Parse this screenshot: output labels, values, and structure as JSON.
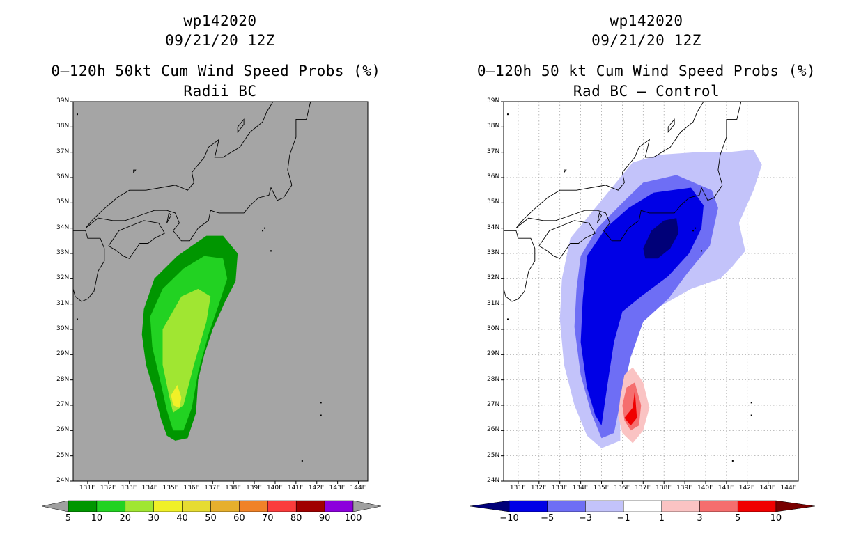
{
  "panels": [
    {
      "storm_id": "wp142020",
      "datetime": "09/21/20 12Z",
      "product": "0–120h 50kt Cum Wind Speed Probs (%)",
      "subtitle": "Radii BC"
    },
    {
      "storm_id": "wp142020",
      "datetime": "09/21/20 12Z",
      "product": "0–120h 50 kt Cum Wind Speed Probs (%)",
      "subtitle": "Rad BC – Control"
    }
  ],
  "lat_ticks": [
    "24N",
    "25N",
    "26N",
    "27N",
    "28N",
    "29N",
    "30N",
    "31N",
    "32N",
    "33N",
    "34N",
    "35N",
    "36N",
    "37N",
    "38N",
    "39N"
  ],
  "lon_ticks": [
    "131E",
    "132E",
    "133E",
    "134E",
    "135E",
    "136E",
    "137E",
    "138E",
    "139E",
    "140E",
    "141E",
    "142E",
    "143E",
    "144E"
  ],
  "colorbar_left": {
    "labels": [
      "5",
      "10",
      "20",
      "30",
      "40",
      "50",
      "60",
      "70",
      "80",
      "90",
      "100"
    ],
    "colors": [
      "#009600",
      "#22d222",
      "#a0e632",
      "#f0f028",
      "#e6dc32",
      "#e6af2d",
      "#f08228",
      "#fa3c3c",
      "#a00000",
      "#8c00dc"
    ],
    "end_color": "#a0a0a0"
  },
  "colorbar_right": {
    "labels": [
      "−10",
      "−5",
      "−3",
      "−1",
      "1",
      "3",
      "5",
      "10"
    ],
    "colors": [
      "#0000e6",
      "#6e6ef5",
      "#c3c3fa",
      "#ffffff",
      "#fac3c3",
      "#f56e6e",
      "#f00000"
    ],
    "low_end_color": "#000078",
    "high_end_color": "#780000"
  },
  "map_colors": {
    "left_background": "#a5a5a5",
    "left_levels": [
      "#009600",
      "#22d222",
      "#a0e632",
      "#f0f028"
    ],
    "right_neg": [
      "#c3c3fa",
      "#6e6ef5",
      "#0000e6",
      "#000078"
    ],
    "right_pos": [
      "#fac3c3",
      "#f56e6e",
      "#f00000"
    ]
  }
}
